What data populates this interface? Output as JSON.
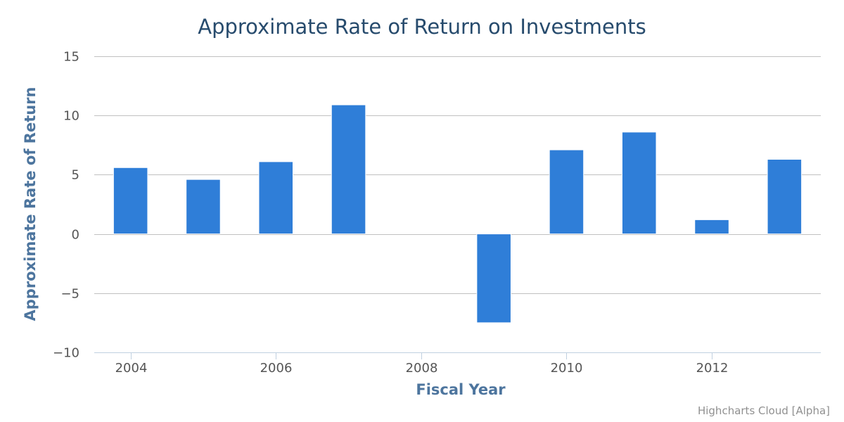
{
  "chart_data": {
    "type": "bar",
    "title": "Approximate Rate of Return on Investments",
    "xlabel": "Fiscal Year",
    "ylabel": "Approximate Rate of Return",
    "x": [
      2004,
      2005,
      2006,
      2007,
      2008,
      2009,
      2010,
      2011,
      2012,
      2013
    ],
    "values": [
      5.6,
      4.6,
      6.1,
      10.9,
      0,
      -7.5,
      7.1,
      8.6,
      1.2,
      6.3
    ],
    "ylim": [
      -10,
      15
    ],
    "yticks": [
      -10,
      -5,
      0,
      5,
      10,
      15
    ],
    "ytick_labels": [
      "−10",
      "−5",
      "0",
      "5",
      "10",
      "15"
    ],
    "xticks": [
      2004,
      2006,
      2008,
      2010,
      2012
    ],
    "xtick_labels": [
      "2004",
      "2006",
      "2008",
      "2010",
      "2012"
    ],
    "grid": true,
    "bar_color": "#2f7ed8"
  },
  "credits": "Highcharts Cloud [Alpha]"
}
